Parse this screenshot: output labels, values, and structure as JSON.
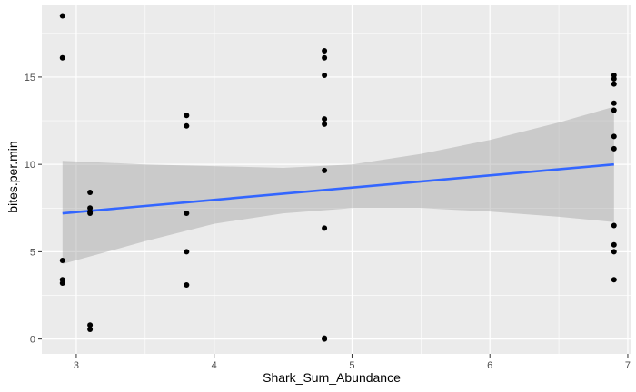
{
  "chart_data": {
    "type": "scatter",
    "xlabel": "Shark_Sum_Abundance",
    "ylabel": "bites.per.min",
    "xlim": [
      2.75,
      7.02
    ],
    "ylim": [
      -0.85,
      19.1
    ],
    "x_ticks": [
      {
        "value": 3,
        "label": "3"
      },
      {
        "value": 4,
        "label": "4"
      },
      {
        "value": 5,
        "label": "5"
      },
      {
        "value": 6,
        "label": "6"
      },
      {
        "value": 7,
        "label": "7"
      }
    ],
    "y_ticks": [
      {
        "value": 0,
        "label": "0"
      },
      {
        "value": 5,
        "label": "5"
      },
      {
        "value": 10,
        "label": "10"
      },
      {
        "value": 15,
        "label": "15"
      }
    ],
    "grid": true,
    "points": [
      {
        "x": 2.9,
        "y": 18.5
      },
      {
        "x": 2.9,
        "y": 16.1
      },
      {
        "x": 2.9,
        "y": 4.5
      },
      {
        "x": 2.9,
        "y": 3.4
      },
      {
        "x": 2.9,
        "y": 3.2
      },
      {
        "x": 3.1,
        "y": 8.4
      },
      {
        "x": 3.1,
        "y": 7.5
      },
      {
        "x": 3.1,
        "y": 7.3
      },
      {
        "x": 3.1,
        "y": 7.2
      },
      {
        "x": 3.1,
        "y": 0.8
      },
      {
        "x": 3.1,
        "y": 0.55
      },
      {
        "x": 3.8,
        "y": 12.8
      },
      {
        "x": 3.8,
        "y": 12.2
      },
      {
        "x": 3.8,
        "y": 7.2
      },
      {
        "x": 3.8,
        "y": 5.0
      },
      {
        "x": 3.8,
        "y": 3.1
      },
      {
        "x": 4.8,
        "y": 16.5
      },
      {
        "x": 4.8,
        "y": 16.1
      },
      {
        "x": 4.8,
        "y": 15.1
      },
      {
        "x": 4.8,
        "y": 12.6
      },
      {
        "x": 4.8,
        "y": 12.3
      },
      {
        "x": 4.8,
        "y": 9.65
      },
      {
        "x": 4.8,
        "y": 6.35
      },
      {
        "x": 4.8,
        "y": 0.05
      },
      {
        "x": 4.8,
        "y": 0.0
      },
      {
        "x": 6.9,
        "y": 15.1
      },
      {
        "x": 6.9,
        "y": 14.9
      },
      {
        "x": 6.9,
        "y": 14.6
      },
      {
        "x": 6.9,
        "y": 13.5
      },
      {
        "x": 6.9,
        "y": 13.1
      },
      {
        "x": 6.9,
        "y": 11.6
      },
      {
        "x": 6.9,
        "y": 10.9
      },
      {
        "x": 6.9,
        "y": 6.5
      },
      {
        "x": 6.9,
        "y": 5.4
      },
      {
        "x": 6.9,
        "y": 5.0
      },
      {
        "x": 6.9,
        "y": 3.4
      }
    ],
    "fit_line": {
      "method": "linear",
      "color": "#3366FF",
      "points": [
        {
          "x": 2.9,
          "y": 7.2
        },
        {
          "x": 6.9,
          "y": 10.0
        }
      ]
    },
    "confidence_band": {
      "color": "#999999",
      "points": [
        {
          "x": 2.9,
          "lower": 4.3,
          "upper": 10.2
        },
        {
          "x": 3.5,
          "lower": 5.6,
          "upper": 10.0
        },
        {
          "x": 4.0,
          "lower": 6.6,
          "upper": 9.9
        },
        {
          "x": 4.5,
          "lower": 7.2,
          "upper": 9.8
        },
        {
          "x": 5.0,
          "lower": 7.5,
          "upper": 10.0
        },
        {
          "x": 5.5,
          "lower": 7.5,
          "upper": 10.6
        },
        {
          "x": 6.0,
          "lower": 7.3,
          "upper": 11.4
        },
        {
          "x": 6.5,
          "lower": 7.0,
          "upper": 12.4
        },
        {
          "x": 6.9,
          "lower": 6.7,
          "upper": 13.3
        }
      ]
    },
    "colors": {
      "panel_background": "#EBEBEB",
      "grid_line": "#FFFFFF",
      "point": "#000000"
    }
  }
}
